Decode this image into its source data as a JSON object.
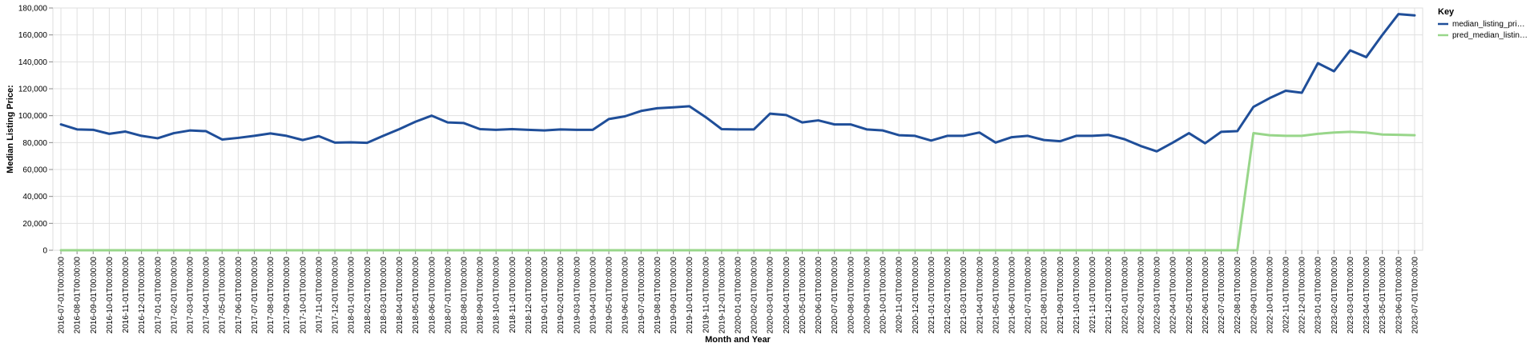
{
  "chart_data": {
    "type": "line",
    "xlabel": "Month and Year",
    "ylabel": "Median Listing Price:",
    "ylim": [
      0,
      180000
    ],
    "y_ticks": [
      "0",
      "20,000",
      "40,000",
      "60,000",
      "80,000",
      "100,000",
      "120,000",
      "140,000",
      "160,000",
      "180,000"
    ],
    "y_tick_values": [
      0,
      20000,
      40000,
      60000,
      80000,
      100000,
      120000,
      140000,
      160000,
      180000
    ],
    "grid": true,
    "legend": {
      "title": "Key",
      "placement": "right"
    },
    "categories": [
      "2016-07-01T00:00:00",
      "2016-08-01T00:00:00",
      "2016-09-01T00:00:00",
      "2016-10-01T00:00:00",
      "2016-11-01T00:00:00",
      "2016-12-01T00:00:00",
      "2017-01-01T00:00:00",
      "2017-02-01T00:00:00",
      "2017-03-01T00:00:00",
      "2017-04-01T00:00:00",
      "2017-05-01T00:00:00",
      "2017-06-01T00:00:00",
      "2017-07-01T00:00:00",
      "2017-08-01T00:00:00",
      "2017-09-01T00:00:00",
      "2017-10-01T00:00:00",
      "2017-11-01T00:00:00",
      "2017-12-01T00:00:00",
      "2018-01-01T00:00:00",
      "2018-02-01T00:00:00",
      "2018-03-01T00:00:00",
      "2018-04-01T00:00:00",
      "2018-05-01T00:00:00",
      "2018-06-01T00:00:00",
      "2018-07-01T00:00:00",
      "2018-08-01T00:00:00",
      "2018-09-01T00:00:00",
      "2018-10-01T00:00:00",
      "2018-11-01T00:00:00",
      "2018-12-01T00:00:00",
      "2019-01-01T00:00:00",
      "2019-02-01T00:00:00",
      "2019-03-01T00:00:00",
      "2019-04-01T00:00:00",
      "2019-05-01T00:00:00",
      "2019-06-01T00:00:00",
      "2019-07-01T00:00:00",
      "2019-08-01T00:00:00",
      "2019-09-01T00:00:00",
      "2019-10-01T00:00:00",
      "2019-11-01T00:00:00",
      "2019-12-01T00:00:00",
      "2020-01-01T00:00:00",
      "2020-02-01T00:00:00",
      "2020-03-01T00:00:00",
      "2020-04-01T00:00:00",
      "2020-05-01T00:00:00",
      "2020-06-01T00:00:00",
      "2020-07-01T00:00:00",
      "2020-08-01T00:00:00",
      "2020-09-01T00:00:00",
      "2020-10-01T00:00:00",
      "2020-11-01T00:00:00",
      "2020-12-01T00:00:00",
      "2021-01-01T00:00:00",
      "2021-02-01T00:00:00",
      "2021-03-01T00:00:00",
      "2021-04-01T00:00:00",
      "2021-05-01T00:00:00",
      "2021-06-01T00:00:00",
      "2021-07-01T00:00:00",
      "2021-08-01T00:00:00",
      "2021-09-01T00:00:00",
      "2021-10-01T00:00:00",
      "2021-11-01T00:00:00",
      "2021-12-01T00:00:00",
      "2022-01-01T00:00:00",
      "2022-02-01T00:00:00",
      "2022-03-01T00:00:00",
      "2022-04-01T00:00:00",
      "2022-05-01T00:00:00",
      "2022-06-01T00:00:00",
      "2022-07-01T00:00:00",
      "2022-08-01T00:00:00",
      "2022-09-01T00:00:00",
      "2022-10-01T00:00:00",
      "2022-11-01T00:00:00",
      "2022-12-01T00:00:00",
      "2023-01-01T00:00:00",
      "2023-02-01T00:00:00",
      "2023-03-01T00:00:00",
      "2023-04-01T00:00:00",
      "2023-05-01T00:00:00",
      "2023-06-01T00:00:00",
      "2023-07-01T00:00:00"
    ],
    "series": [
      {
        "name": "median_listing_pri…",
        "color": "#1f4e99",
        "values": [
          93500,
          89800,
          89500,
          86500,
          88200,
          85000,
          83200,
          87000,
          89000,
          88500,
          82300,
          83500,
          85000,
          86800,
          85000,
          81900,
          84800,
          80000,
          80200,
          79800,
          85000,
          90000,
          95500,
          100000,
          95000,
          94500,
          90000,
          89500,
          90000,
          89500,
          89000,
          89800,
          89500,
          89500,
          97500,
          99500,
          103500,
          105500,
          106200,
          107000,
          99000,
          90000,
          89800,
          89800,
          101500,
          100500,
          95000,
          96500,
          93500,
          93500,
          89800,
          89000,
          85500,
          85000,
          81500,
          85000,
          85000,
          87500,
          80000,
          84000,
          85000,
          81900,
          81000,
          85000,
          85000,
          85700,
          82500,
          77500,
          73500,
          80000,
          87000,
          79500,
          88000,
          88500,
          106500,
          113000,
          118500,
          117000,
          139000,
          133000,
          148500,
          143500,
          160000,
          175500,
          174500
        ]
      },
      {
        "name": "pred_median_listin…",
        "color": "#98d68a",
        "values": [
          0,
          0,
          0,
          0,
          0,
          0,
          0,
          0,
          0,
          0,
          0,
          0,
          0,
          0,
          0,
          0,
          0,
          0,
          0,
          0,
          0,
          0,
          0,
          0,
          0,
          0,
          0,
          0,
          0,
          0,
          0,
          0,
          0,
          0,
          0,
          0,
          0,
          0,
          0,
          0,
          0,
          0,
          0,
          0,
          0,
          0,
          0,
          0,
          0,
          0,
          0,
          0,
          0,
          0,
          0,
          0,
          0,
          0,
          0,
          0,
          0,
          0,
          0,
          0,
          0,
          0,
          0,
          0,
          0,
          0,
          0,
          0,
          0,
          0,
          87000,
          85500,
          85000,
          85000,
          86500,
          87500,
          88000,
          87500,
          86000,
          85800,
          85500
        ]
      }
    ]
  }
}
